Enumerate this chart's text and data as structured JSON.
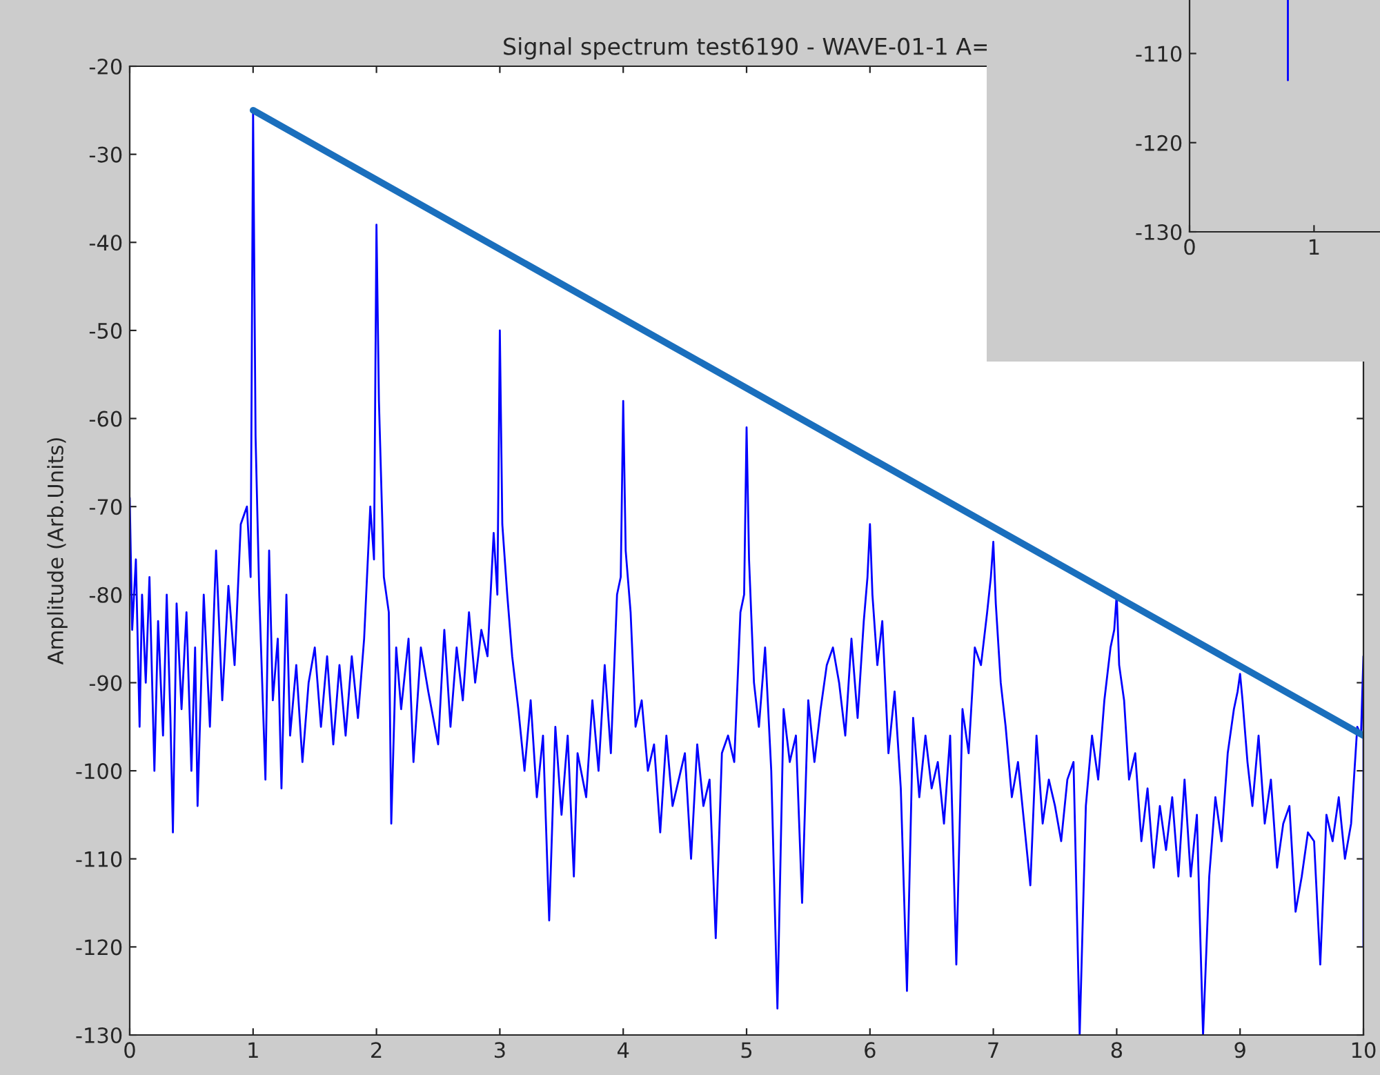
{
  "chart_data": [
    {
      "type": "line",
      "title": "Signal spectrum test6190 - WAVE-01-1 A=",
      "ylabel": "Amplitude (Arb.Units)",
      "xlim": [
        0,
        10
      ],
      "ylim": [
        -130,
        -20
      ],
      "xticks": [
        0,
        1,
        2,
        3,
        4,
        5,
        6,
        7,
        8,
        9,
        10
      ],
      "yticks": [
        -130,
        -120,
        -110,
        -100,
        -90,
        -80,
        -70,
        -60,
        -50,
        -40,
        -30,
        -20
      ],
      "grid": false,
      "legend": false,
      "series": [
        {
          "color": "#0000ff",
          "line_style": "solid",
          "x": [
            0,
            0.02,
            0.05,
            0.08,
            0.1,
            0.13,
            0.16,
            0.2,
            0.23,
            0.27,
            0.3,
            0.33,
            0.35,
            0.38,
            0.42,
            0.46,
            0.5,
            0.53,
            0.55,
            0.6,
            0.65,
            0.7,
            0.75,
            0.8,
            0.85,
            0.9,
            0.95,
            0.98,
            1.0,
            1.02,
            1.05,
            1.1,
            1.13,
            1.16,
            1.2,
            1.23,
            1.27,
            1.3,
            1.35,
            1.4,
            1.45,
            1.5,
            1.55,
            1.6,
            1.65,
            1.7,
            1.75,
            1.8,
            1.85,
            1.9,
            1.95,
            1.98,
            2.0,
            2.02,
            2.06,
            2.1,
            2.12,
            2.16,
            2.2,
            2.26,
            2.3,
            2.36,
            2.42,
            2.5,
            2.55,
            2.6,
            2.65,
            2.7,
            2.75,
            2.8,
            2.85,
            2.9,
            2.95,
            2.98,
            3.0,
            3.02,
            3.06,
            3.1,
            3.15,
            3.2,
            3.25,
            3.3,
            3.35,
            3.4,
            3.45,
            3.5,
            3.55,
            3.6,
            3.63,
            3.7,
            3.75,
            3.8,
            3.85,
            3.9,
            3.95,
            3.98,
            4.0,
            4.02,
            4.06,
            4.1,
            4.15,
            4.2,
            4.25,
            4.3,
            4.35,
            4.4,
            4.45,
            4.5,
            4.55,
            4.6,
            4.65,
            4.7,
            4.75,
            4.8,
            4.85,
            4.9,
            4.95,
            4.98,
            5.0,
            5.02,
            5.06,
            5.1,
            5.15,
            5.2,
            5.25,
            5.3,
            5.35,
            5.4,
            5.45,
            5.5,
            5.55,
            5.6,
            5.65,
            5.7,
            5.75,
            5.8,
            5.85,
            5.9,
            5.95,
            5.98,
            6.0,
            6.02,
            6.06,
            6.1,
            6.15,
            6.2,
            6.25,
            6.3,
            6.35,
            6.4,
            6.45,
            6.5,
            6.55,
            6.6,
            6.65,
            6.7,
            6.75,
            6.8,
            6.85,
            6.9,
            6.95,
            6.98,
            7.0,
            7.02,
            7.06,
            7.1,
            7.15,
            7.2,
            7.25,
            7.3,
            7.35,
            7.4,
            7.45,
            7.5,
            7.55,
            7.6,
            7.65,
            7.7,
            7.75,
            7.8,
            7.85,
            7.9,
            7.95,
            7.98,
            8.0,
            8.02,
            8.06,
            8.1,
            8.15,
            8.2,
            8.25,
            8.3,
            8.35,
            8.4,
            8.45,
            8.5,
            8.55,
            8.6,
            8.65,
            8.7,
            8.75,
            8.8,
            8.85,
            8.9,
            8.95,
            8.98,
            9.0,
            9.02,
            9.06,
            9.1,
            9.15,
            9.2,
            9.25,
            9.3,
            9.35,
            9.4,
            9.45,
            9.5,
            9.55,
            9.6,
            9.65,
            9.7,
            9.75,
            9.8,
            9.85,
            9.9,
            9.95,
            9.98,
            10.0,
            10.0
          ],
          "values": [
            -69,
            -84,
            -76,
            -95,
            -80,
            -90,
            -78,
            -100,
            -83,
            -96,
            -80,
            -94,
            -107,
            -81,
            -93,
            -82,
            -100,
            -86,
            -104,
            -80,
            -95,
            -75,
            -92,
            -79,
            -88,
            -72,
            -70,
            -78,
            -25,
            -62,
            -80,
            -101,
            -75,
            -92,
            -85,
            -102,
            -80,
            -96,
            -88,
            -99,
            -90,
            -86,
            -95,
            -87,
            -97,
            -88,
            -96,
            -87,
            -94,
            -85,
            -70,
            -76,
            -38,
            -58,
            -78,
            -82,
            -106,
            -86,
            -93,
            -85,
            -99,
            -86,
            -91,
            -97,
            -84,
            -95,
            -86,
            -92,
            -82,
            -90,
            -84,
            -87,
            -73,
            -80,
            -50,
            -72,
            -80,
            -87,
            -93,
            -100,
            -92,
            -103,
            -96,
            -117,
            -95,
            -105,
            -96,
            -112,
            -98,
            -103,
            -92,
            -100,
            -88,
            -98,
            -80,
            -78,
            -58,
            -75,
            -82,
            -95,
            -92,
            -100,
            -97,
            -107,
            -96,
            -104,
            -101,
            -98,
            -110,
            -97,
            -104,
            -101,
            -119,
            -98,
            -96,
            -99,
            -82,
            -80,
            -61,
            -76,
            -90,
            -95,
            -86,
            -100,
            -127,
            -93,
            -99,
            -96,
            -115,
            -92,
            -99,
            -93,
            -88,
            -86,
            -90,
            -96,
            -85,
            -94,
            -83,
            -78,
            -72,
            -80,
            -88,
            -83,
            -98,
            -91,
            -102,
            -125,
            -94,
            -103,
            -96,
            -102,
            -99,
            -106,
            -96,
            -122,
            -93,
            -98,
            -86,
            -88,
            -82,
            -78,
            -74,
            -81,
            -90,
            -95,
            -103,
            -99,
            -106,
            -113,
            -96,
            -106,
            -101,
            -104,
            -108,
            -101,
            -99,
            -130,
            -104,
            -96,
            -101,
            -92,
            -86,
            -84,
            -80,
            -88,
            -92,
            -101,
            -98,
            -108,
            -102,
            -111,
            -104,
            -109,
            -103,
            -112,
            -101,
            -112,
            -105,
            -130,
            -112,
            -103,
            -108,
            -98,
            -93,
            -91,
            -89,
            -92,
            -99,
            -104,
            -96,
            -106,
            -101,
            -111,
            -106,
            -104,
            -116,
            -112,
            -107,
            -108,
            -122,
            -105,
            -108,
            -103,
            -110,
            -106,
            -95,
            -96,
            -87,
            -120
          ]
        },
        {
          "color": "#1a6fbd",
          "line_style": "solid",
          "x": [
            1,
            10
          ],
          "values": [
            -25,
            -96
          ]
        }
      ]
    },
    {
      "type": "line",
      "xlim": [
        0,
        1.53
      ],
      "ylim": [
        -130,
        -104
      ],
      "xticks": [
        0,
        1
      ],
      "yticks": [
        -130,
        -120,
        -110
      ],
      "grid": false,
      "legend": false,
      "series": [
        {
          "color": "#0000ff",
          "line_style": "solid",
          "x": [
            0.79,
            0.79
          ],
          "values": [
            -104,
            -113
          ]
        }
      ]
    }
  ]
}
